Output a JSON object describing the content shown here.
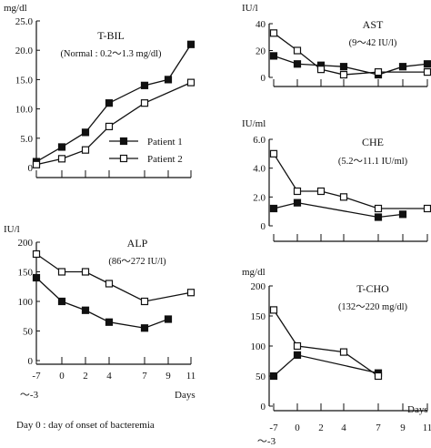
{
  "footnote": "Day 0 : day of onset of bacteremia",
  "x_tick_labels": [
    "-7",
    "0",
    "2",
    "4",
    "7",
    "9",
    "11"
  ],
  "x_tick_sublabel": "～-3",
  "x_axis_label": "Days",
  "legend": [
    {
      "label": "Patient 1",
      "marker": "filled-square"
    },
    {
      "label": "Patient 2",
      "marker": "open-square"
    }
  ],
  "chart_data": [
    {
      "id": "tbil",
      "type": "line",
      "title": "T-BIL",
      "subtitle": "(Normal : 0.2～1.3 mg/dl)",
      "ylabel": "mg/dl",
      "ylim": [
        0,
        25
      ],
      "yticks": [
        "0",
        "5.0",
        "10.0",
        "15.0",
        "20.0",
        "25.0"
      ],
      "series": [
        {
          "name": "Patient 1",
          "x": [
            -7,
            0,
            2,
            4,
            7,
            9,
            11
          ],
          "y": [
            1.0,
            3.5,
            6.0,
            11.0,
            14.0,
            15.0,
            21.0
          ]
        },
        {
          "name": "Patient 2",
          "x": [
            -7,
            0,
            2,
            4,
            7,
            11
          ],
          "y": [
            0.5,
            1.5,
            3.0,
            7.0,
            11.0,
            14.5
          ]
        }
      ]
    },
    {
      "id": "alp",
      "type": "line",
      "title": "ALP",
      "subtitle": "(86～272 IU/l)",
      "ylabel": "IU/l",
      "ylim": [
        0,
        200
      ],
      "yticks": [
        "0",
        "50",
        "100",
        "150",
        "200"
      ],
      "series": [
        {
          "name": "Patient 1",
          "x": [
            -7,
            0,
            2,
            4,
            7,
            9
          ],
          "y": [
            140,
            100,
            85,
            65,
            55,
            70
          ]
        },
        {
          "name": "Patient 2",
          "x": [
            -7,
            0,
            2,
            4,
            7,
            11
          ],
          "y": [
            180,
            150,
            150,
            130,
            100,
            115
          ]
        }
      ]
    },
    {
      "id": "ast",
      "type": "line",
      "title": "AST",
      "subtitle": "(9～42 IU/l)",
      "ylabel": "IU/l",
      "ylim": [
        0,
        40
      ],
      "yticks": [
        "0",
        "20",
        "40"
      ],
      "series": [
        {
          "name": "Patient 1",
          "x": [
            -7,
            0,
            2,
            4,
            7,
            9,
            11
          ],
          "y": [
            16,
            10,
            9,
            8,
            2,
            8,
            10
          ]
        },
        {
          "name": "Patient 2",
          "x": [
            -7,
            0,
            2,
            4,
            7,
            11
          ],
          "y": [
            33,
            20,
            6,
            2,
            4,
            4
          ]
        }
      ]
    },
    {
      "id": "che",
      "type": "line",
      "title": "CHE",
      "subtitle": "(5.2～11.1 IU/ml)",
      "ylabel": "IU/ml",
      "ylim": [
        0,
        6
      ],
      "yticks": [
        "0",
        "2.0",
        "4.0",
        "6.0"
      ],
      "series": [
        {
          "name": "Patient 1",
          "x": [
            -7,
            0,
            7,
            9
          ],
          "y": [
            1.2,
            1.6,
            0.6,
            0.8
          ]
        },
        {
          "name": "Patient 2",
          "x": [
            -7,
            0,
            2,
            4,
            7,
            11
          ],
          "y": [
            5.0,
            2.4,
            2.4,
            2.0,
            1.2,
            1.2
          ]
        }
      ]
    },
    {
      "id": "tcho",
      "type": "line",
      "title": "T-CHO",
      "subtitle": "(132～220 mg/dl)",
      "ylabel": "mg/dl",
      "ylim": [
        0,
        200
      ],
      "yticks": [
        "0",
        "50",
        "100",
        "150",
        "200"
      ],
      "series": [
        {
          "name": "Patient 1",
          "x": [
            -7,
            0,
            7
          ],
          "y": [
            50,
            85,
            55
          ]
        },
        {
          "name": "Patient 2",
          "x": [
            -7,
            0,
            4,
            7
          ],
          "y": [
            160,
            100,
            90,
            50
          ]
        }
      ]
    }
  ]
}
